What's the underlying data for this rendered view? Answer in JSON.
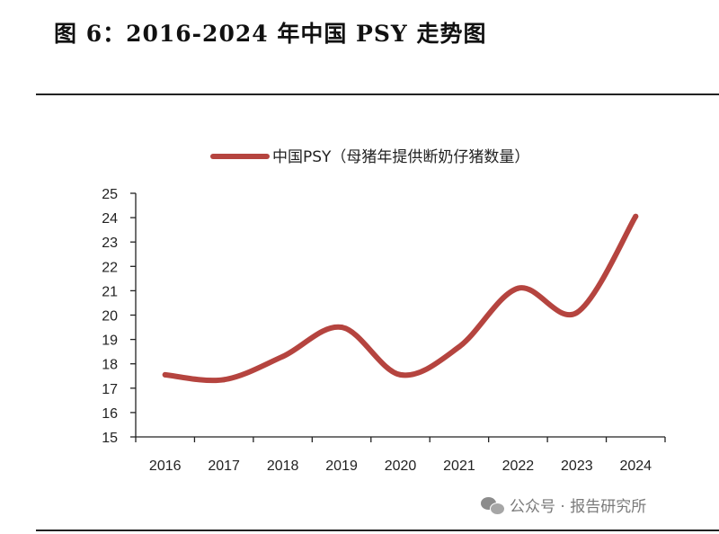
{
  "figure": {
    "title": "图 6：2016-2024 年中国 PSY 走势图"
  },
  "watermark": {
    "text": "公众号 · 报告研究所",
    "icon": "wechat-icon"
  },
  "chart_data": {
    "type": "line",
    "x": [
      "2016",
      "2017",
      "2018",
      "2019",
      "2020",
      "2021",
      "2022",
      "2023",
      "2024"
    ],
    "series": [
      {
        "name": "中国PSY（母猪年提供断奶仔猪数量）",
        "values": [
          17.55,
          17.35,
          18.3,
          19.5,
          17.55,
          18.7,
          21.1,
          20.1,
          24.05
        ],
        "color": "#b5443f"
      }
    ],
    "ylim": [
      15,
      25
    ],
    "yticks": [
      "15",
      "16",
      "17",
      "18",
      "19",
      "20",
      "21",
      "22",
      "23",
      "24",
      "25"
    ],
    "xlabel": "",
    "ylabel": "",
    "grid": false,
    "legend": "top"
  }
}
